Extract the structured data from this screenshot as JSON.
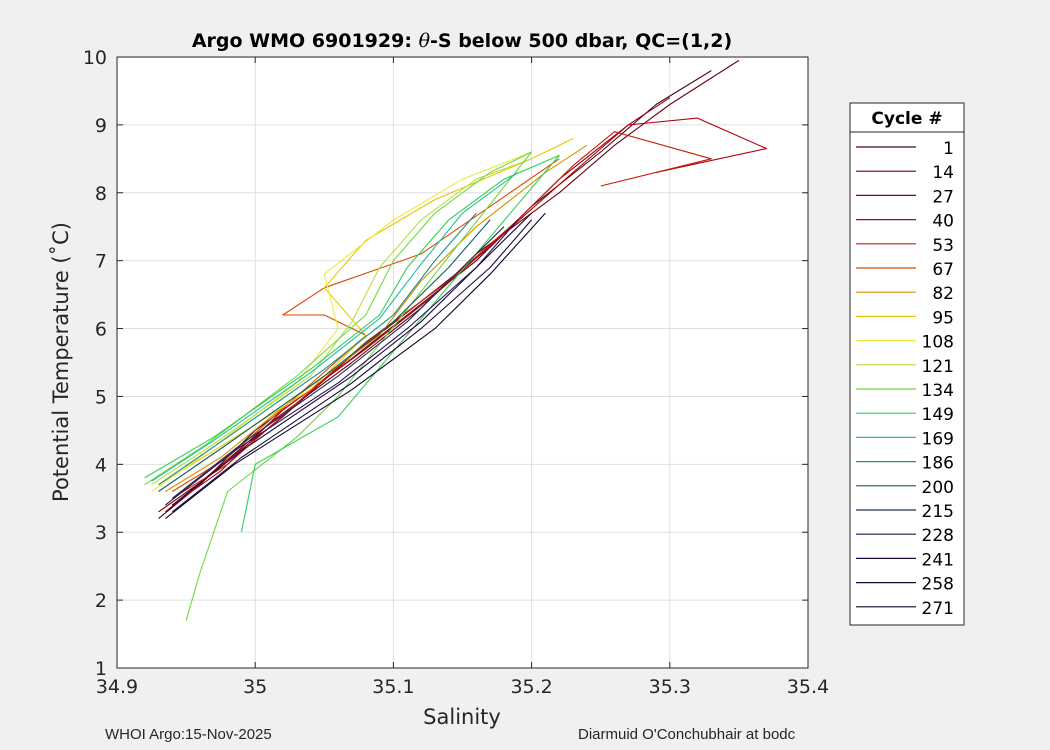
{
  "colors": {
    "background": "#f0f0f0",
    "plot_background": "#ffffff",
    "grid": "#dfdfdf",
    "axis": "#262626",
    "text": "#262626"
  },
  "footer": {
    "left": "WHOI Argo:15-Nov-2025",
    "right": "Diarmuid O'Conchubhair at bodc"
  },
  "chart_data": {
    "type": "line",
    "title_parts": [
      "Argo WMO 6901929: ",
      "θ",
      "-S below 500 dbar,  QC=(1,2)"
    ],
    "xlabel": "Salinity",
    "ylabel": "Potential Temperature (˚C)",
    "xlim": [
      34.9,
      35.4
    ],
    "ylim": [
      1,
      10
    ],
    "xticks": [
      34.9,
      35.0,
      35.1,
      35.2,
      35.3,
      35.4
    ],
    "xtick_labels": [
      "34.9",
      "35",
      "35.1",
      "35.2",
      "35.3",
      "35.4"
    ],
    "yticks": [
      1,
      2,
      3,
      4,
      5,
      6,
      7,
      8,
      9,
      10
    ],
    "ytick_labels": [
      "1",
      "2",
      "3",
      "4",
      "5",
      "6",
      "7",
      "8",
      "9",
      "10"
    ],
    "grid": true,
    "legend_title": "Cycle #",
    "legend_position": "right",
    "series": [
      {
        "name": "1",
        "color": "#4a0a12",
        "points": [
          [
            34.93,
            3.2
          ],
          [
            34.96,
            3.7
          ],
          [
            35.0,
            4.5
          ],
          [
            35.06,
            5.4
          ],
          [
            35.11,
            6.2
          ],
          [
            35.16,
            7.0
          ],
          [
            35.2,
            7.8
          ],
          [
            35.25,
            8.6
          ],
          [
            35.29,
            9.3
          ],
          [
            35.33,
            9.8
          ]
        ]
      },
      {
        "name": "14",
        "color": "#700010",
        "points": [
          [
            34.93,
            3.3
          ],
          [
            34.965,
            3.8
          ],
          [
            35.01,
            4.6
          ],
          [
            35.07,
            5.5
          ],
          [
            35.12,
            6.3
          ],
          [
            35.16,
            7.1
          ],
          [
            35.22,
            8.0
          ],
          [
            35.26,
            8.7
          ],
          [
            35.3,
            9.3
          ],
          [
            35.35,
            9.95
          ]
        ]
      },
      {
        "name": "27",
        "color": "#8c0014",
        "points": [
          [
            34.935,
            3.3
          ],
          [
            34.97,
            3.9
          ],
          [
            35.02,
            4.7
          ],
          [
            35.07,
            5.6
          ],
          [
            35.12,
            6.4
          ],
          [
            35.17,
            7.2
          ],
          [
            35.22,
            8.2
          ],
          [
            35.27,
            9.0
          ],
          [
            35.3,
            9.4
          ]
        ]
      },
      {
        "name": "40",
        "color": "#b00010",
        "points": [
          [
            34.94,
            3.4
          ],
          [
            34.975,
            3.9
          ],
          [
            35.02,
            4.8
          ],
          [
            35.08,
            5.7
          ],
          [
            35.13,
            6.5
          ],
          [
            35.18,
            7.4
          ],
          [
            35.23,
            8.3
          ],
          [
            35.27,
            9.0
          ],
          [
            35.32,
            9.1
          ],
          [
            35.37,
            8.65
          ],
          [
            35.29,
            8.3
          ]
        ]
      },
      {
        "name": "53",
        "color": "#cc1a00",
        "points": [
          [
            34.94,
            3.5
          ],
          [
            34.98,
            4.0
          ],
          [
            35.03,
            4.9
          ],
          [
            35.08,
            5.8
          ],
          [
            35.14,
            6.7
          ],
          [
            35.19,
            7.6
          ],
          [
            35.23,
            8.4
          ],
          [
            35.26,
            8.9
          ],
          [
            35.33,
            8.5
          ],
          [
            35.25,
            8.1
          ]
        ]
      },
      {
        "name": "67",
        "color": "#d84a00",
        "points": [
          [
            34.94,
            3.6
          ],
          [
            34.98,
            4.1
          ],
          [
            35.03,
            5.0
          ],
          [
            35.08,
            5.9
          ],
          [
            35.05,
            6.2
          ],
          [
            35.02,
            6.2
          ],
          [
            35.05,
            6.6
          ],
          [
            35.12,
            7.1
          ],
          [
            35.17,
            7.8
          ],
          [
            35.22,
            8.5
          ]
        ]
      },
      {
        "name": "82",
        "color": "#d89000",
        "points": [
          [
            34.935,
            3.6
          ],
          [
            34.975,
            4.1
          ],
          [
            35.03,
            5.0
          ],
          [
            35.09,
            5.9
          ],
          [
            35.12,
            6.7
          ],
          [
            35.16,
            7.5
          ],
          [
            35.21,
            8.3
          ],
          [
            35.24,
            8.7
          ]
        ]
      },
      {
        "name": "95",
        "color": "#e6c800",
        "points": [
          [
            34.93,
            3.7
          ],
          [
            34.97,
            4.2
          ],
          [
            35.04,
            5.1
          ],
          [
            35.08,
            5.9
          ],
          [
            35.05,
            6.6
          ],
          [
            35.08,
            7.3
          ],
          [
            35.13,
            7.9
          ],
          [
            35.2,
            8.5
          ],
          [
            35.23,
            8.8
          ]
        ]
      },
      {
        "name": "108",
        "color": "#f0e840",
        "points": [
          [
            34.925,
            3.6
          ],
          [
            34.96,
            4.1
          ],
          [
            35.03,
            5.2
          ],
          [
            35.06,
            6.0
          ],
          [
            35.05,
            6.8
          ],
          [
            35.1,
            7.6
          ],
          [
            35.15,
            8.2
          ],
          [
            35.2,
            8.6
          ]
        ]
      },
      {
        "name": "121",
        "color": "#b8e040",
        "points": [
          [
            34.925,
            3.7
          ],
          [
            34.97,
            4.3
          ],
          [
            35.04,
            5.3
          ],
          [
            35.07,
            6.1
          ],
          [
            35.09,
            6.9
          ],
          [
            35.12,
            7.6
          ],
          [
            35.16,
            8.2
          ],
          [
            35.2,
            8.5
          ]
        ]
      },
      {
        "name": "134",
        "color": "#70d840",
        "points": [
          [
            34.92,
            3.7
          ],
          [
            34.965,
            4.3
          ],
          [
            35.03,
            5.3
          ],
          [
            35.08,
            6.2
          ],
          [
            35.1,
            7.0
          ],
          [
            35.13,
            7.7
          ],
          [
            35.17,
            8.3
          ],
          [
            35.2,
            8.6
          ],
          [
            35.06,
            5.0
          ],
          [
            35.03,
            4.4
          ],
          [
            34.98,
            3.6
          ],
          [
            34.96,
            2.4
          ],
          [
            34.95,
            1.7
          ]
        ]
      },
      {
        "name": "149",
        "color": "#30d050",
        "points": [
          [
            34.92,
            3.8
          ],
          [
            34.97,
            4.4
          ],
          [
            35.04,
            5.4
          ],
          [
            35.09,
            6.2
          ],
          [
            35.11,
            6.9
          ],
          [
            35.14,
            7.6
          ],
          [
            35.18,
            8.2
          ],
          [
            35.22,
            8.55
          ],
          [
            35.06,
            4.7
          ],
          [
            35.0,
            4.0
          ],
          [
            34.99,
            3.0
          ]
        ]
      },
      {
        "name": "169",
        "color": "#20c0a0",
        "points": [
          [
            34.925,
            3.75
          ],
          [
            34.97,
            4.35
          ],
          [
            35.04,
            5.35
          ],
          [
            35.09,
            6.15
          ],
          [
            35.12,
            6.95
          ],
          [
            35.15,
            7.7
          ],
          [
            35.19,
            8.3
          ]
        ]
      },
      {
        "name": "186",
        "color": "#189090",
        "points": [
          [
            34.93,
            3.7
          ],
          [
            34.98,
            4.4
          ],
          [
            35.05,
            5.4
          ],
          [
            35.1,
            6.2
          ],
          [
            35.13,
            7.0
          ],
          [
            35.16,
            7.7
          ]
        ]
      },
      {
        "name": "200",
        "color": "#106060",
        "points": [
          [
            34.93,
            3.6
          ],
          [
            34.98,
            4.3
          ],
          [
            35.05,
            5.3
          ],
          [
            35.1,
            6.1
          ],
          [
            35.14,
            6.9
          ],
          [
            35.17,
            7.6
          ]
        ]
      },
      {
        "name": "215",
        "color": "#203058",
        "points": [
          [
            34.94,
            3.5
          ],
          [
            34.99,
            4.3
          ],
          [
            35.06,
            5.3
          ],
          [
            35.11,
            6.1
          ],
          [
            35.15,
            6.9
          ],
          [
            35.18,
            7.5
          ]
        ]
      },
      {
        "name": "228",
        "color": "#2a1050",
        "points": [
          [
            34.935,
            3.4
          ],
          [
            34.985,
            4.2
          ],
          [
            35.06,
            5.2
          ],
          [
            35.11,
            6.0
          ],
          [
            35.16,
            6.9
          ],
          [
            35.19,
            7.6
          ]
        ]
      },
      {
        "name": "241",
        "color": "#200840",
        "points": [
          [
            34.94,
            3.4
          ],
          [
            34.99,
            4.2
          ],
          [
            35.07,
            5.3
          ],
          [
            35.12,
            6.1
          ],
          [
            35.16,
            6.9
          ],
          [
            35.2,
            7.7
          ]
        ]
      },
      {
        "name": "258",
        "color": "#180838",
        "points": [
          [
            34.94,
            3.3
          ],
          [
            34.99,
            4.1
          ],
          [
            35.07,
            5.2
          ],
          [
            35.12,
            6.0
          ],
          [
            35.17,
            6.9
          ],
          [
            35.2,
            7.6
          ]
        ]
      },
      {
        "name": "271",
        "color": "#100628",
        "points": [
          [
            34.935,
            3.2
          ],
          [
            34.985,
            4.0
          ],
          [
            35.07,
            5.1
          ],
          [
            35.13,
            6.0
          ],
          [
            35.17,
            6.8
          ],
          [
            35.21,
            7.7
          ]
        ]
      }
    ]
  }
}
